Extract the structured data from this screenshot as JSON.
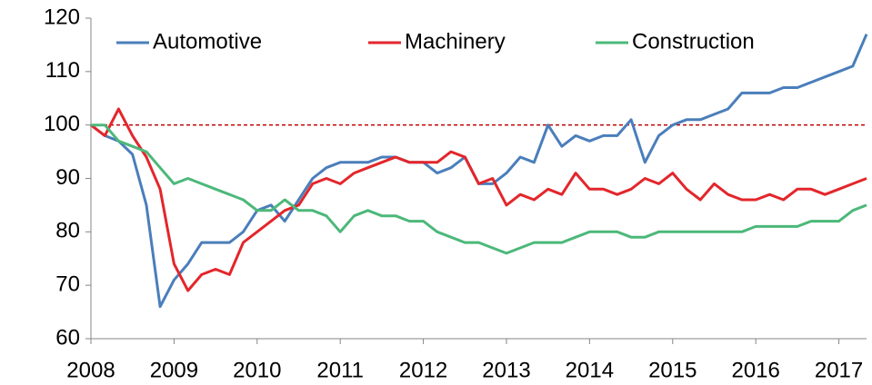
{
  "chart_data": {
    "type": "line",
    "x": [
      2008,
      2008.167,
      2008.333,
      2008.5,
      2008.667,
      2008.833,
      2009,
      2009.167,
      2009.333,
      2009.5,
      2009.667,
      2009.833,
      2010,
      2010.167,
      2010.333,
      2010.5,
      2010.667,
      2010.833,
      2011,
      2011.167,
      2011.333,
      2011.5,
      2011.667,
      2011.833,
      2012,
      2012.167,
      2012.333,
      2012.5,
      2012.667,
      2012.833,
      2013,
      2013.167,
      2013.333,
      2013.5,
      2013.667,
      2013.833,
      2014,
      2014.167,
      2014.333,
      2014.5,
      2014.667,
      2014.833,
      2015,
      2015.167,
      2015.333,
      2015.5,
      2015.667,
      2015.833,
      2016,
      2016.167,
      2016.333,
      2016.5,
      2016.667,
      2016.833,
      2017,
      2017.167,
      2017.333
    ],
    "series": [
      {
        "name": "Automotive",
        "color": "#4a7ebb",
        "values": [
          100,
          98,
          97,
          94.5,
          85,
          66,
          71,
          74,
          78,
          78,
          78,
          80,
          84,
          85,
          82,
          86,
          90,
          92,
          93,
          93,
          93,
          94,
          94,
          93,
          93,
          91,
          92,
          94,
          89,
          89,
          91,
          94,
          93,
          100,
          96,
          98,
          97,
          98,
          98,
          101,
          93,
          98,
          100,
          101,
          101,
          102,
          103,
          106,
          106,
          106,
          107,
          107,
          108,
          109,
          110,
          111,
          117
        ]
      },
      {
        "name": "Machinery",
        "color": "#e3262b",
        "values": [
          100,
          98,
          103,
          98,
          94,
          88,
          74,
          69,
          72,
          73,
          72,
          78,
          80,
          82,
          84,
          85,
          89,
          90,
          89,
          91,
          92,
          93,
          94,
          93,
          93,
          93,
          95,
          94,
          89,
          90,
          85,
          87,
          86,
          88,
          87,
          91,
          88,
          88,
          87,
          88,
          90,
          89,
          91,
          88,
          86,
          89,
          87,
          86,
          86,
          87,
          86,
          88,
          88,
          87,
          88,
          89,
          90
        ]
      },
      {
        "name": "Construction",
        "color": "#4cb87a",
        "values": [
          100,
          100,
          97,
          96,
          95,
          92,
          89,
          90,
          89,
          88,
          87,
          86,
          84,
          84,
          86,
          84,
          84,
          83,
          80,
          83,
          84,
          83,
          83,
          82,
          82,
          80,
          79,
          78,
          78,
          77,
          76,
          77,
          78,
          78,
          78,
          79,
          80,
          80,
          80,
          79,
          79,
          80,
          80,
          80,
          80,
          80,
          80,
          80,
          81,
          81,
          81,
          81,
          82,
          82,
          82,
          84,
          85
        ]
      }
    ],
    "reference_line": 100,
    "reference_color": "#c00000",
    "xlim": [
      2008,
      2017.333
    ],
    "xticks": [
      2008,
      2009,
      2010,
      2011,
      2012,
      2013,
      2014,
      2015,
      2016,
      2017
    ],
    "ylim": [
      60,
      120
    ],
    "yticks": [
      60,
      70,
      80,
      90,
      100,
      110,
      120
    ],
    "grid": false,
    "legend": "top"
  }
}
